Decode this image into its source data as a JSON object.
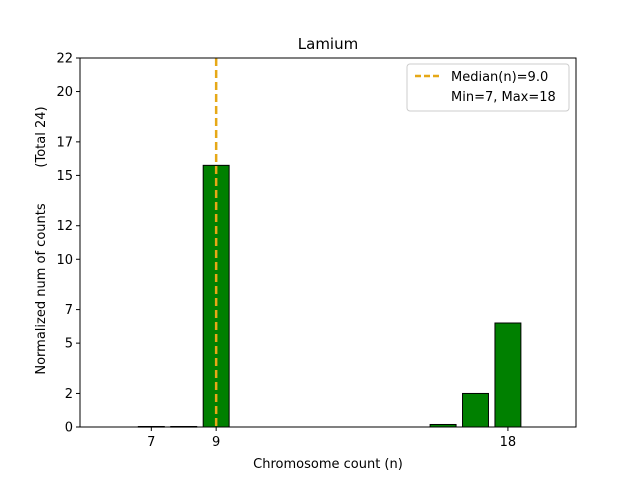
{
  "chart_data": {
    "type": "bar",
    "title": "Lamium",
    "xlabel": "Chromosome count (n)",
    "ylabel": "Normalized num of counts",
    "ylabel_extra": "(Total 24)",
    "xlim": [
      4.8,
      20.1
    ],
    "ylim": [
      0,
      22
    ],
    "x_ticks": [
      7,
      9,
      18
    ],
    "y_ticks": [
      0,
      2,
      5,
      7,
      10,
      12,
      15,
      17,
      20,
      22
    ],
    "bars": [
      {
        "x": 7,
        "value": 0.03
      },
      {
        "x": 8,
        "value": 0.03
      },
      {
        "x": 9,
        "value": 15.6
      },
      {
        "x": 16,
        "value": 0.15
      },
      {
        "x": 17,
        "value": 2.0
      },
      {
        "x": 18,
        "value": 6.2
      }
    ],
    "bar_color": "#008000",
    "bar_edge_color": "#000000",
    "median_line": {
      "x": 9,
      "color": "#e6a817"
    },
    "legend": {
      "placement": "top-right",
      "entries": [
        "Median(n)=9.0",
        "Min=7, Max=18"
      ]
    },
    "grid": false
  }
}
